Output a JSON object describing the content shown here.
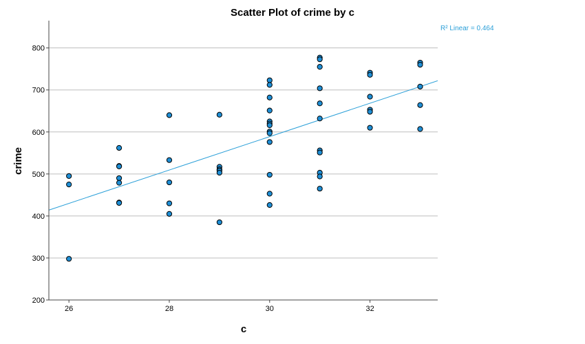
{
  "chart_data": {
    "type": "scatter",
    "title": "Scatter Plot of crime by c",
    "xlabel": "c",
    "ylabel": "crime",
    "xlim": [
      25.6,
      33.35
    ],
    "ylim": [
      200,
      865
    ],
    "x_ticks": [
      26,
      28,
      30,
      32
    ],
    "y_ticks": [
      200,
      300,
      400,
      500,
      600,
      700,
      800
    ],
    "grid": "horizontal",
    "points": [
      {
        "x": 26,
        "y": 495
      },
      {
        "x": 26,
        "y": 475
      },
      {
        "x": 26,
        "y": 298
      },
      {
        "x": 27,
        "y": 562
      },
      {
        "x": 27,
        "y": 519
      },
      {
        "x": 27,
        "y": 518
      },
      {
        "x": 27,
        "y": 490
      },
      {
        "x": 27,
        "y": 479
      },
      {
        "x": 27,
        "y": 432
      },
      {
        "x": 27,
        "y": 431
      },
      {
        "x": 28,
        "y": 640
      },
      {
        "x": 28,
        "y": 533
      },
      {
        "x": 28,
        "y": 480
      },
      {
        "x": 28,
        "y": 430
      },
      {
        "x": 28,
        "y": 405
      },
      {
        "x": 29,
        "y": 641
      },
      {
        "x": 29,
        "y": 517
      },
      {
        "x": 29,
        "y": 511
      },
      {
        "x": 29,
        "y": 508
      },
      {
        "x": 29,
        "y": 503
      },
      {
        "x": 29,
        "y": 385
      },
      {
        "x": 30,
        "y": 723
      },
      {
        "x": 30,
        "y": 712
      },
      {
        "x": 30,
        "y": 682
      },
      {
        "x": 30,
        "y": 651
      },
      {
        "x": 30,
        "y": 625
      },
      {
        "x": 30,
        "y": 620
      },
      {
        "x": 30,
        "y": 616
      },
      {
        "x": 30,
        "y": 601
      },
      {
        "x": 30,
        "y": 597
      },
      {
        "x": 30,
        "y": 576
      },
      {
        "x": 30,
        "y": 498
      },
      {
        "x": 30,
        "y": 453
      },
      {
        "x": 30,
        "y": 426
      },
      {
        "x": 31,
        "y": 777
      },
      {
        "x": 31,
        "y": 773
      },
      {
        "x": 31,
        "y": 755
      },
      {
        "x": 31,
        "y": 704
      },
      {
        "x": 31,
        "y": 668
      },
      {
        "x": 31,
        "y": 632
      },
      {
        "x": 31,
        "y": 556
      },
      {
        "x": 31,
        "y": 551
      },
      {
        "x": 31,
        "y": 503
      },
      {
        "x": 31,
        "y": 494
      },
      {
        "x": 31,
        "y": 465
      },
      {
        "x": 32,
        "y": 741
      },
      {
        "x": 32,
        "y": 736
      },
      {
        "x": 32,
        "y": 684
      },
      {
        "x": 32,
        "y": 653
      },
      {
        "x": 32,
        "y": 648
      },
      {
        "x": 32,
        "y": 610
      },
      {
        "x": 33,
        "y": 765
      },
      {
        "x": 33,
        "y": 760
      },
      {
        "x": 33,
        "y": 708
      },
      {
        "x": 33,
        "y": 664
      },
      {
        "x": 33,
        "y": 607
      }
    ],
    "fit_line": {
      "x_range": [
        25.6,
        33.35
      ],
      "y_range": [
        414,
        722
      ],
      "label": "R² Linear = 0.464"
    },
    "colors": {
      "point_fill": "#1f8fd6",
      "point_stroke": "#000000",
      "fit_line": "#2a9fd8",
      "grid": "#bdbdbd",
      "axis": "#444444"
    }
  }
}
